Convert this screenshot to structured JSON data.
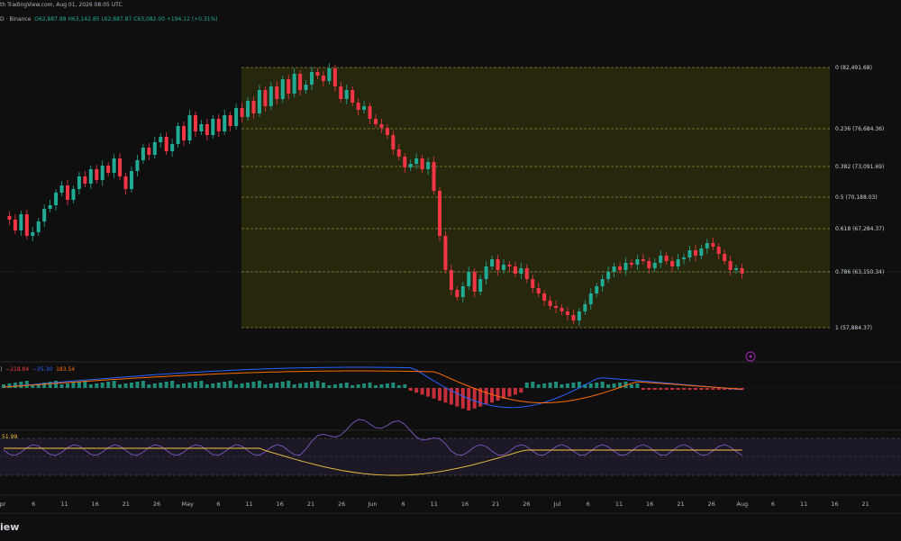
{
  "header": {
    "published": "th TradingView.com, Aug 01, 2026 08:05 UTC",
    "symbol_suffix": "D · Binance"
  },
  "ohlc": {
    "open": "O62,887.88",
    "high": "H63,142.85",
    "low": "L62,887.87",
    "close": "C63,082.00",
    "change": "+194.12 (+0.31%)"
  },
  "macd_legend": {
    "prefix": ")",
    "hist": "−218.84",
    "macd": "−35.30",
    "signal": "183.54"
  },
  "rsi_legend": {
    "value": "51.99"
  },
  "fib_levels": [
    {
      "ratio": "0",
      "price": "(82,491.68)"
    },
    {
      "ratio": "0.236",
      "price": "(76,684.36)"
    },
    {
      "ratio": "0.382",
      "price": "(73,091.69)"
    },
    {
      "ratio": "0.5",
      "price": "(70,188.03)"
    },
    {
      "ratio": "0.618",
      "price": "(67,284.37)"
    },
    {
      "ratio": "0.786",
      "price": "(63,150.34)"
    },
    {
      "ratio": "1",
      "price": "(57,884.37)"
    }
  ],
  "time_axis": [
    "pr",
    "6",
    "11",
    "16",
    "21",
    "26",
    "May",
    "6",
    "11",
    "16",
    "21",
    "26",
    "Jun",
    "6",
    "11",
    "16",
    "21",
    "26",
    "Jul",
    "6",
    "11",
    "16",
    "21",
    "26",
    "Aug",
    "6",
    "11",
    "16",
    "21"
  ],
  "footer": {
    "brand": "iew"
  },
  "colors": {
    "up": "#22ab94",
    "down": "#f23645",
    "fib_line": "#c8b84a",
    "fib_fill": "#2b2b0e",
    "macd_line": "#2962ff",
    "signal_line": "#ff6d00",
    "rsi_line": "#7e57c2",
    "rsi_ma": "#f7c945"
  },
  "icons": {
    "alert": "lightning-icon"
  }
}
